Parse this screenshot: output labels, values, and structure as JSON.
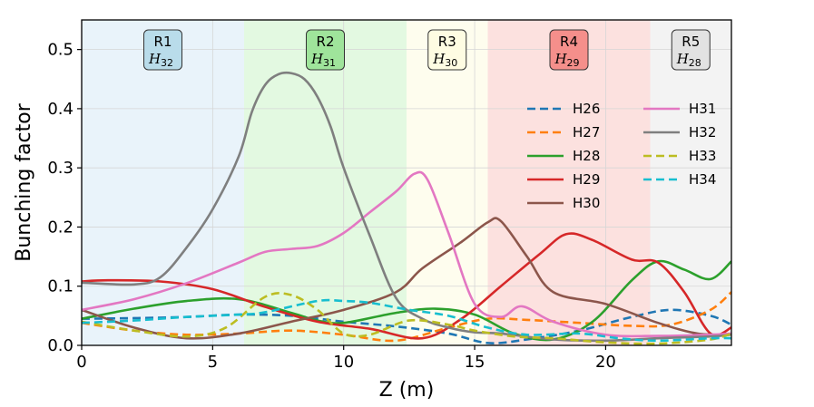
{
  "chart_data": {
    "type": "line",
    "title": "",
    "xlabel": "Z (m)",
    "ylabel": "Bunching factor",
    "xlim": [
      0,
      24.8
    ],
    "ylim": [
      0,
      0.55
    ],
    "xticks": [
      0,
      5,
      10,
      15,
      20
    ],
    "xtick_labels": [
      "0",
      "5",
      "10",
      "15",
      "20"
    ],
    "yticks": [
      0.0,
      0.1,
      0.2,
      0.3,
      0.4,
      0.5
    ],
    "ytick_labels": [
      "0.0",
      "0.1",
      "0.2",
      "0.3",
      "0.4",
      "0.5"
    ],
    "grid": true,
    "regions": [
      {
        "name": "R1",
        "sub": "H",
        "sub_idx": "32",
        "x0": 0,
        "x1": 6.2,
        "fill": "#e9f3fa",
        "box": "#b9dcea"
      },
      {
        "name": "R2",
        "sub": "H",
        "sub_idx": "31",
        "x0": 6.2,
        "x1": 12.4,
        "fill": "#e3f9e1",
        "box": "#9fe49b"
      },
      {
        "name": "R3",
        "sub": "H",
        "sub_idx": "30",
        "x0": 12.4,
        "x1": 15.5,
        "fill": "#fefdee",
        "box": "#fefce2"
      },
      {
        "name": "R4",
        "sub": "H",
        "sub_idx": "29",
        "x0": 15.5,
        "x1": 21.7,
        "fill": "#fce1df",
        "box": "#f58f8b"
      },
      {
        "name": "R5",
        "sub": "H",
        "sub_idx": "28",
        "x0": 21.7,
        "x1": 24.8,
        "fill": "#f3f3f3",
        "box": "#e2e2e2"
      }
    ],
    "legend_position": "upper-right",
    "series": [
      {
        "name": "H26",
        "color": "#1f77b4",
        "dashed": true,
        "x": [
          0,
          2,
          4,
          6,
          8,
          10,
          12,
          14,
          15.5,
          17,
          19,
          21,
          22.5,
          24,
          24.8
        ],
        "values": [
          0.045,
          0.046,
          0.048,
          0.052,
          0.05,
          0.04,
          0.032,
          0.02,
          0.004,
          0.01,
          0.025,
          0.048,
          0.06,
          0.05,
          0.035
        ]
      },
      {
        "name": "H27",
        "color": "#ff7f0e",
        "dashed": true,
        "x": [
          0,
          2,
          4,
          6,
          8,
          10,
          12,
          14,
          15.5,
          17,
          19,
          21,
          22.5,
          24,
          24.8
        ],
        "values": [
          0.038,
          0.025,
          0.018,
          0.02,
          0.025,
          0.018,
          0.008,
          0.03,
          0.045,
          0.043,
          0.038,
          0.033,
          0.035,
          0.06,
          0.09
        ]
      },
      {
        "name": "H28",
        "color": "#2ca02c",
        "dashed": false,
        "x": [
          0,
          2,
          4,
          6,
          8,
          9,
          10,
          12,
          13.5,
          15,
          16.5,
          18,
          19.5,
          21,
          22,
          23,
          24,
          24.8
        ],
        "values": [
          0.045,
          0.062,
          0.075,
          0.078,
          0.055,
          0.042,
          0.038,
          0.055,
          0.062,
          0.052,
          0.02,
          0.01,
          0.04,
          0.11,
          0.142,
          0.128,
          0.112,
          0.142
        ]
      },
      {
        "name": "H29",
        "color": "#d62728",
        "dashed": false,
        "x": [
          0,
          1,
          3,
          5,
          7,
          9,
          11,
          13,
          14.5,
          16,
          17.5,
          18.5,
          19.5,
          21,
          22,
          23,
          24,
          24.8
        ],
        "values": [
          0.108,
          0.11,
          0.108,
          0.095,
          0.065,
          0.04,
          0.028,
          0.012,
          0.045,
          0.1,
          0.155,
          0.188,
          0.178,
          0.145,
          0.14,
          0.09,
          0.02,
          0.03
        ]
      },
      {
        "name": "H30",
        "color": "#8c564b",
        "dashed": false,
        "x": [
          0,
          2,
          4,
          6,
          8,
          10,
          12,
          13,
          14.5,
          15.5,
          16,
          17,
          18,
          20,
          22,
          23.5,
          24.8
        ],
        "values": [
          0.06,
          0.03,
          0.012,
          0.02,
          0.04,
          0.06,
          0.09,
          0.13,
          0.175,
          0.208,
          0.21,
          0.15,
          0.09,
          0.07,
          0.038,
          0.02,
          0.018
        ]
      },
      {
        "name": "H31",
        "color": "#e377c2",
        "dashed": false,
        "x": [
          0,
          2,
          4,
          6,
          7,
          8,
          9,
          10,
          11,
          12,
          12.7,
          13.2,
          14,
          15,
          16,
          16.8,
          18,
          20,
          22,
          24,
          24.8
        ],
        "values": [
          0.06,
          0.078,
          0.105,
          0.14,
          0.158,
          0.163,
          0.168,
          0.19,
          0.225,
          0.26,
          0.29,
          0.28,
          0.19,
          0.07,
          0.048,
          0.066,
          0.04,
          0.018,
          0.016,
          0.018,
          0.02
        ]
      },
      {
        "name": "H32",
        "color": "#7f7f7f",
        "dashed": false,
        "x": [
          0,
          2,
          3,
          4,
          5,
          6,
          6.5,
          7,
          7.5,
          8,
          8.5,
          9,
          9.5,
          10,
          11,
          12,
          13,
          14,
          15,
          16,
          18,
          20,
          22,
          24,
          24.8
        ],
        "values": [
          0.106,
          0.103,
          0.115,
          0.165,
          0.23,
          0.32,
          0.395,
          0.44,
          0.458,
          0.46,
          0.45,
          0.42,
          0.37,
          0.3,
          0.185,
          0.08,
          0.045,
          0.03,
          0.022,
          0.02,
          0.01,
          0.008,
          0.012,
          0.015,
          0.018
        ]
      },
      {
        "name": "H33",
        "color": "#bcbd22",
        "dashed": true,
        "x": [
          0,
          2,
          4,
          5.5,
          7,
          8,
          9,
          10,
          11,
          12.5,
          14,
          15,
          16.5,
          18,
          20,
          22,
          24,
          24.8
        ],
        "values": [
          0.04,
          0.025,
          0.015,
          0.03,
          0.082,
          0.085,
          0.06,
          0.02,
          0.018,
          0.042,
          0.035,
          0.025,
          0.015,
          0.012,
          0.005,
          0.003,
          0.01,
          0.02
        ]
      },
      {
        "name": "H34",
        "color": "#17becf",
        "dashed": true,
        "x": [
          0,
          2,
          4,
          6,
          7,
          9,
          10,
          11,
          12.5,
          14,
          15.5,
          17,
          19,
          20.5,
          22,
          24,
          24.8
        ],
        "values": [
          0.038,
          0.042,
          0.048,
          0.052,
          0.056,
          0.075,
          0.075,
          0.072,
          0.06,
          0.05,
          0.03,
          0.018,
          0.02,
          0.012,
          0.008,
          0.012,
          0.012
        ]
      }
    ]
  }
}
